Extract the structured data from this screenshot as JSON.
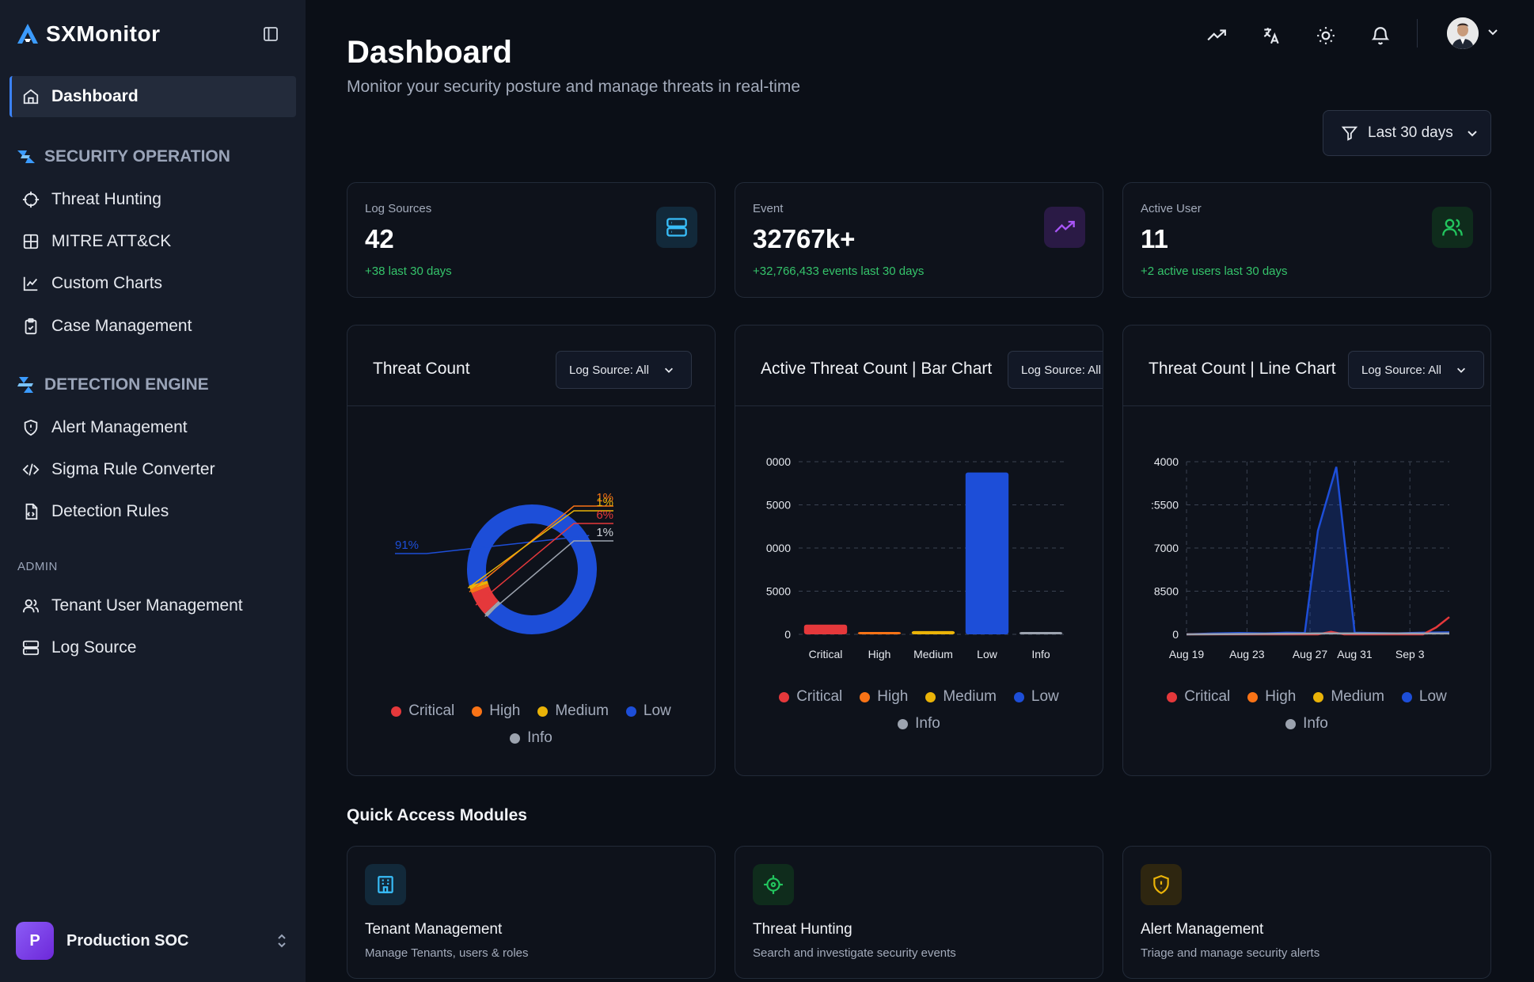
{
  "app": {
    "name": "SXMonitor"
  },
  "sidebar": {
    "dashboard": "Dashboard",
    "sections": [
      {
        "title": "SECURITY OPERATION",
        "items": [
          "Threat Hunting",
          "MITRE ATT&CK",
          "Custom Charts",
          "Case Management"
        ]
      },
      {
        "title": "DETECTION ENGINE",
        "items": [
          "Alert Management",
          "Sigma Rule Converter",
          "Detection Rules"
        ]
      },
      {
        "title": "ADMIN",
        "items": [
          "Tenant User Management",
          "Log Source"
        ]
      }
    ],
    "org": {
      "initial": "P",
      "name": "Production SOC"
    }
  },
  "header": {
    "title": "Dashboard",
    "subtitle": "Monitor your security posture and manage threats in real-time",
    "range": "Last 30 days"
  },
  "stats": [
    {
      "label": "Log Sources",
      "value": "42",
      "delta": "+38 last 30 days",
      "icon": "server-icon",
      "color": "#38bdf8",
      "bg": "#12293a"
    },
    {
      "label": "Event",
      "value": "32767k+",
      "delta": "+32,766,433 events last 30 days",
      "icon": "trending-up-icon",
      "color": "#a855f7",
      "bg": "#2a1a45"
    },
    {
      "label": "Active User",
      "value": "11",
      "delta": "+2 active users last 30 days",
      "icon": "users-icon",
      "color": "#22c55e",
      "bg": "#0f2c1c"
    }
  ],
  "charts": {
    "filter_label": "Log Source: All",
    "severity_colors": {
      "Critical": "#e5383b",
      "High": "#f97316",
      "Medium": "#eab308",
      "Low": "#1d4ed8",
      "Info": "#9ca3af"
    },
    "legend": [
      "Critical",
      "High",
      "Medium",
      "Low",
      "Info"
    ],
    "donut_title": "Threat Count",
    "bar_title": "Active Threat Count | Bar Chart",
    "line_title": "Threat Count | Line Chart"
  },
  "chart_data": [
    {
      "type": "pie",
      "title": "Threat Count",
      "categories": [
        "Critical",
        "High",
        "Medium",
        "Low",
        "Info"
      ],
      "values": [
        6,
        1,
        1,
        91,
        1
      ],
      "labels": [
        "6%",
        "1%",
        "1%",
        "91%",
        "1%"
      ],
      "legend_position": "bottom"
    },
    {
      "type": "bar",
      "title": "Active Threat Count | Bar Chart",
      "categories": [
        "Critical",
        "High",
        "Medium",
        "Low",
        "Info"
      ],
      "values": [
        1800,
        300,
        600,
        30000,
        400
      ],
      "yticks": [
        "0",
        "5000",
        "0000",
        "5000",
        "0000"
      ],
      "ylim": [
        0,
        32000
      ],
      "grid": true,
      "legend_position": "bottom"
    },
    {
      "type": "line",
      "title": "Threat Count | Line Chart",
      "x": [
        "Aug 19",
        "Aug 23",
        "Aug 27",
        "Aug 31",
        "Sep 3"
      ],
      "yticks": [
        "0",
        "8500",
        "7000",
        ":5500",
        "4000"
      ],
      "grid": true,
      "legend_position": "bottom",
      "series": [
        {
          "name": "Low",
          "points": [
            [
              0,
              0
            ],
            [
              0.1,
              0.005
            ],
            [
              0.2,
              0.008
            ],
            [
              0.3,
              0.006
            ],
            [
              0.38,
              0.01
            ],
            [
              0.45,
              0.008
            ],
            [
              0.5,
              0.6
            ],
            [
              0.57,
              0.97
            ],
            [
              0.64,
              0.01
            ],
            [
              0.7,
              0.008
            ],
            [
              0.8,
              0.006
            ],
            [
              0.9,
              0.01
            ],
            [
              1,
              0.012
            ]
          ]
        },
        {
          "name": "Critical",
          "points": [
            [
              0,
              0
            ],
            [
              0.5,
              0
            ],
            [
              0.55,
              0.015
            ],
            [
              0.6,
              0
            ],
            [
              0.9,
              0
            ],
            [
              0.95,
              0.04
            ],
            [
              1,
              0.1
            ]
          ]
        },
        {
          "name": "Info",
          "points": [
            [
              0,
              0
            ],
            [
              0.5,
              0.005
            ],
            [
              1,
              0.005
            ]
          ]
        }
      ]
    }
  ],
  "quick_access": {
    "title": "Quick Access Modules",
    "modules": [
      {
        "name": "Tenant Management",
        "desc": "Manage Tenants, users & roles",
        "icon": "building-icon",
        "color": "#38bdf8",
        "bg": "#12293a"
      },
      {
        "name": "Threat Hunting",
        "desc": "Search and investigate security events",
        "icon": "crosshair-icon",
        "color": "#22c55e",
        "bg": "#0f2c1c"
      },
      {
        "name": "Alert Management",
        "desc": "Triage and manage security alerts",
        "icon": "shield-alert-icon",
        "color": "#eab308",
        "bg": "#2e2610"
      }
    ]
  }
}
